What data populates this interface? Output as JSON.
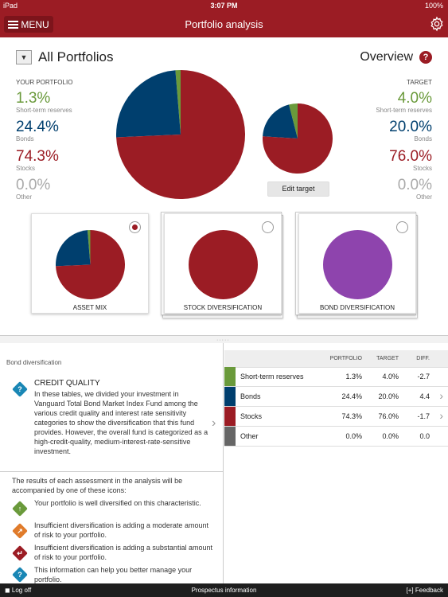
{
  "status_bar": {
    "carrier": "iPad",
    "time": "3:07 PM",
    "battery": "100%"
  },
  "nav": {
    "menu_label": "MENU",
    "title": "Portfolio analysis"
  },
  "portfolio": {
    "name": "All Portfolios",
    "view": "Overview",
    "help": "?"
  },
  "your_portfolio": {
    "heading": "YOUR PORTFOLIO",
    "items": [
      {
        "pct": "1.3%",
        "label": "Short-term reserves",
        "color": "#6a9a3b"
      },
      {
        "pct": "24.4%",
        "label": "Bonds",
        "color": "#003f6e"
      },
      {
        "pct": "74.3%",
        "label": "Stocks",
        "color": "#9b1c24"
      },
      {
        "pct": "0.0%",
        "label": "Other",
        "color": "#999999"
      }
    ]
  },
  "target": {
    "heading": "TARGET",
    "items": [
      {
        "pct": "4.0%",
        "label": "Short-term reserves",
        "color": "#6a9a3b"
      },
      {
        "pct": "20.0%",
        "label": "Bonds",
        "color": "#003f6e"
      },
      {
        "pct": "76.0%",
        "label": "Stocks",
        "color": "#9b1c24"
      },
      {
        "pct": "0.0%",
        "label": "Other",
        "color": "#999999"
      }
    ],
    "edit_label": "Edit target"
  },
  "cards": [
    {
      "label": "ASSET MIX",
      "selected": true
    },
    {
      "label": "STOCK DIVERSIFICATION",
      "selected": false
    },
    {
      "label": "BOND DIVERSIFICATION",
      "selected": false
    }
  ],
  "bond_section": {
    "title": "Bond diversification",
    "cq_title": "CREDIT QUALITY",
    "cq_text": "In these tables, we divided your investment in Vanguard Total Bond Market Index Fund among the various credit quality and interest rate sensitivity categories to show the diversification that this fund provides. However, the overall fund is categorized as a high-credit-quality, medium-interest-rate-sensitive investment.",
    "results_text": "The results of each assessment in the analysis will be accompanied by one of these icons:",
    "legend": [
      {
        "text": "Your portfolio is well diversified on this characteristic.",
        "color": "#6a9a3b",
        "icon": "up-arrow-icon"
      },
      {
        "text": "Insufficient diversification is adding a moderate amount of risk to your portfolio.",
        "color": "#e07b2a",
        "icon": "diagonal-arrow-icon"
      },
      {
        "text": "Insufficient diversification is adding a substantial amount of risk to your portfolio.",
        "color": "#9b1c24",
        "icon": "turn-arrow-icon"
      },
      {
        "text": "This information can help you better manage your portfolio.",
        "color": "#1a87b5",
        "icon": "info-icon"
      }
    ]
  },
  "table": {
    "headers": [
      "PORTFOLIO",
      "TARGET",
      "DIFF."
    ],
    "rows": [
      {
        "name": "Short-term reserves",
        "portfolio": "1.3%",
        "target": "4.0%",
        "diff": "-2.7",
        "color": "#6a9a3b",
        "chevron": false
      },
      {
        "name": "Bonds",
        "portfolio": "24.4%",
        "target": "20.0%",
        "diff": "4.4",
        "color": "#003f6e",
        "chevron": true
      },
      {
        "name": "Stocks",
        "portfolio": "74.3%",
        "target": "76.0%",
        "diff": "-1.7",
        "color": "#9b1c24",
        "chevron": true
      },
      {
        "name": "Other",
        "portfolio": "0.0%",
        "target": "0.0%",
        "diff": "0.0",
        "color": "#666666",
        "chevron": false
      }
    ]
  },
  "footer": {
    "logoff": "Log off",
    "prospectus": "Prospectus information",
    "feedback": "[+] Feedback"
  },
  "charts": {
    "portfolio_pie": [
      1.3,
      24.4,
      74.3,
      0.0
    ],
    "target_pie": [
      4.0,
      20.0,
      76.0,
      0.0
    ],
    "asset_mix_pie": [
      1.3,
      24.4,
      74.3,
      0.0
    ],
    "stock_pie": [
      100
    ],
    "bond_pie": [
      100
    ],
    "colors": [
      "#6a9a3b",
      "#003f6e",
      "#9b1c24",
      "#999999"
    ],
    "stock_color": "#9b1c24",
    "bond_color": "#8e44ad"
  }
}
